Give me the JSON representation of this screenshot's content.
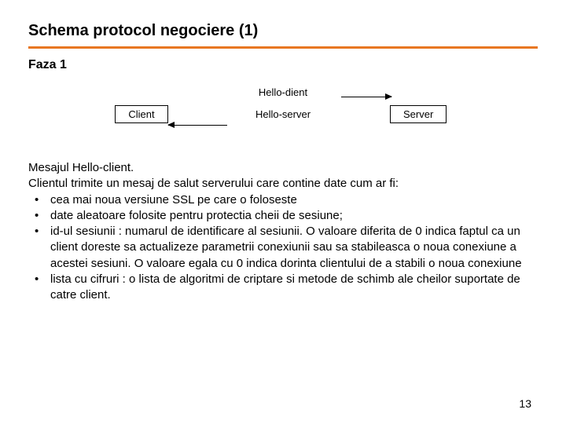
{
  "colors": {
    "accent": "#e87722",
    "text": "#000000",
    "background": "#ffffff",
    "box_border": "#000000"
  },
  "title": "Schema protocol negociere (1)",
  "phase_label": "Faza 1",
  "diagram": {
    "type": "flowchart",
    "top_arrow_label": "Hello-dient",
    "mid_label": "Hello-server",
    "client_label": "Client",
    "server_label": "Server"
  },
  "body": {
    "heading": "Mesajul Hello-client.",
    "intro": "Clientul trimite un mesaj de salut serverului care contine date cum ar fi:",
    "bullets": [
      "cea mai noua versiune SSL pe care o foloseste",
      "date aleatoare folosite pentru protectia cheii de sesiune;",
      "id-ul sesiunii : numarul de identificare al sesiunii. O valoare diferita de 0 indica faptul ca un client doreste sa actualizeze parametrii conexiunii sau sa stabileasca o noua conexiune a acestei sesiuni. O valoare egala cu 0 indica dorinta clientului de a stabili o noua conexiune",
      "lista cu cifruri : o lista de algoritmi de criptare si metode de schimb ale cheilor suportate de catre client."
    ]
  },
  "page_number": "13"
}
